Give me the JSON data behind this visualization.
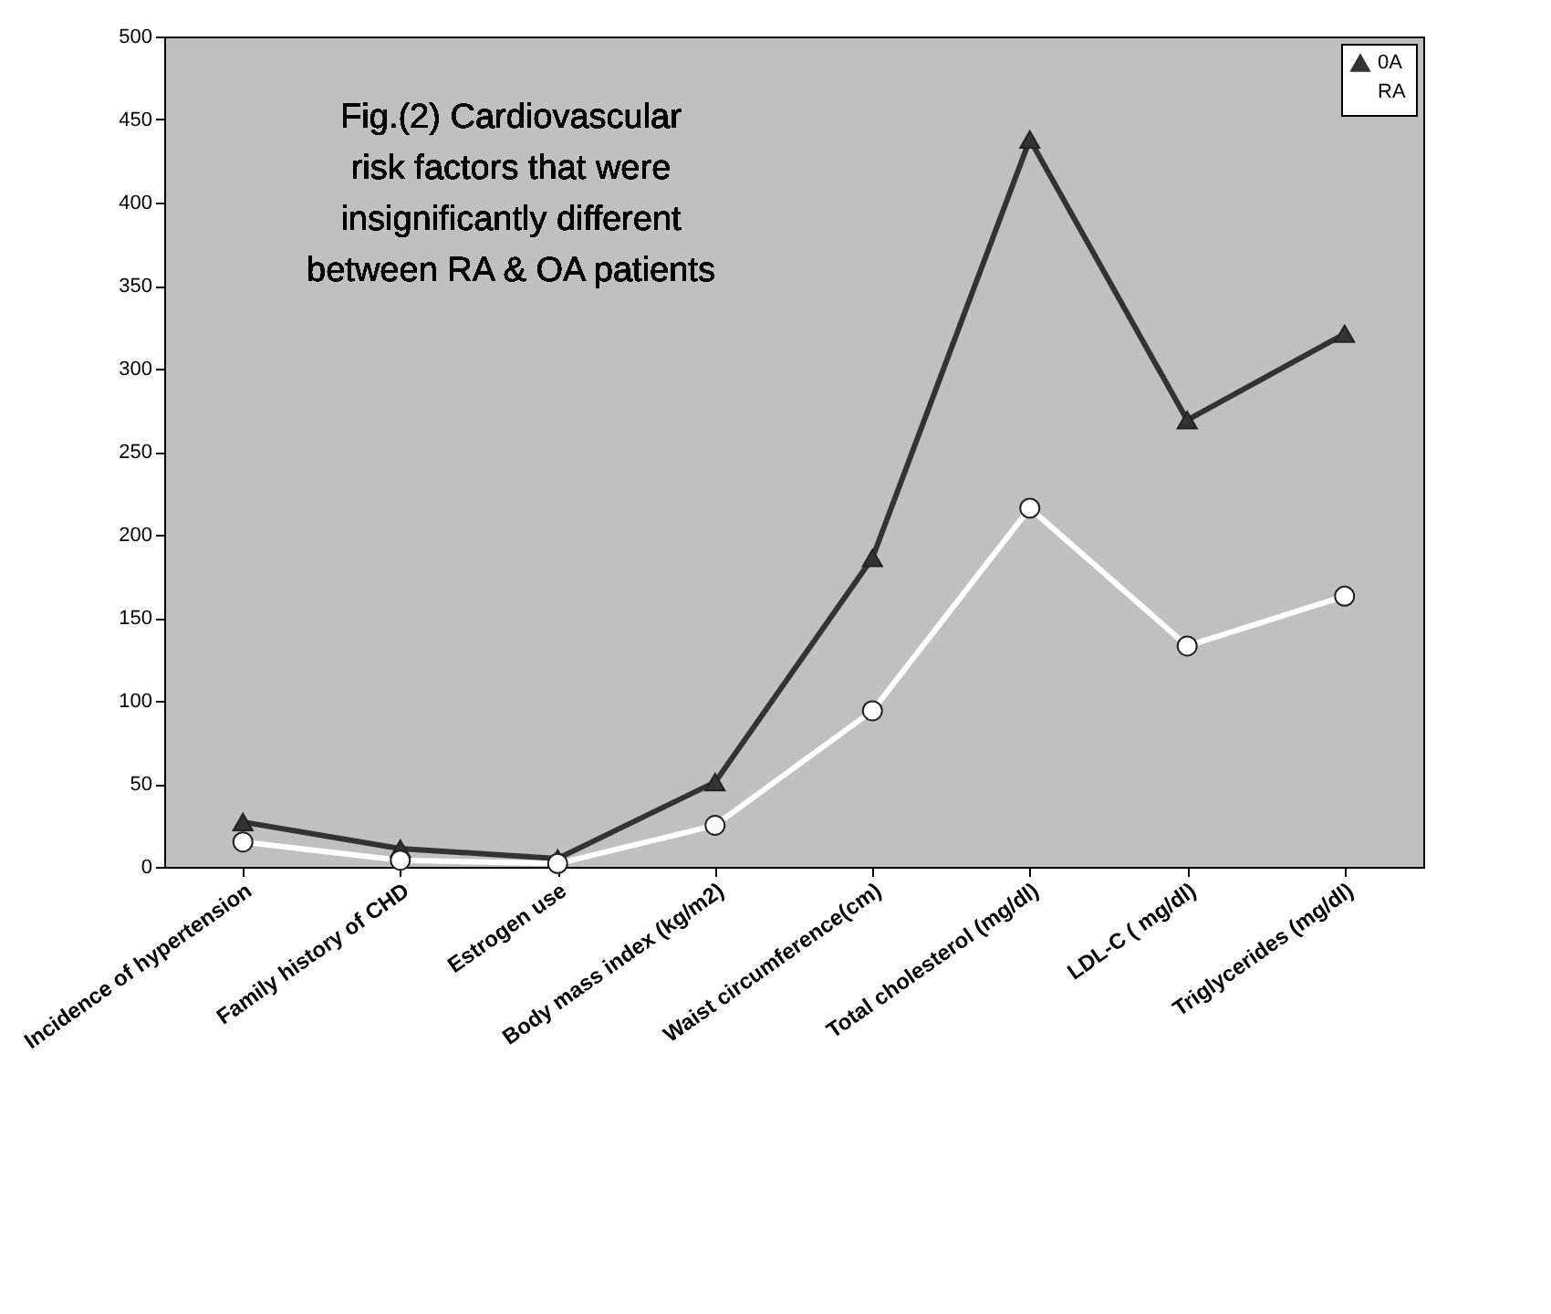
{
  "chart_data": {
    "type": "line",
    "annotations": [
      "Fig.(2) Cardiovascular risk factors that were insignificantly different between RA & OA patients"
    ],
    "categories": [
      "Incidence of hypertension",
      "Family history of CHD",
      "Estrogen use",
      "Body mass index (kg/m2)",
      "Waist circumference(cm)",
      "Total cholesterol (mg/dl)",
      "LDL-C ( mg/dl)",
      "Triglycerides (mg/dl)"
    ],
    "series": [
      {
        "name": "0A",
        "color": "#333333",
        "marker": "triangle",
        "values": [
          27,
          11,
          5,
          51,
          186,
          438,
          269,
          321
        ]
      },
      {
        "name": "RA",
        "color": "#ffffff",
        "marker": "circle",
        "values": [
          15,
          4,
          2,
          25,
          94,
          216,
          133,
          163
        ]
      }
    ],
    "ylim": [
      0,
      500
    ],
    "yticks": [
      0,
      50,
      100,
      150,
      200,
      250,
      300,
      350,
      400,
      450,
      500
    ],
    "grid": false,
    "legend": "top right"
  }
}
